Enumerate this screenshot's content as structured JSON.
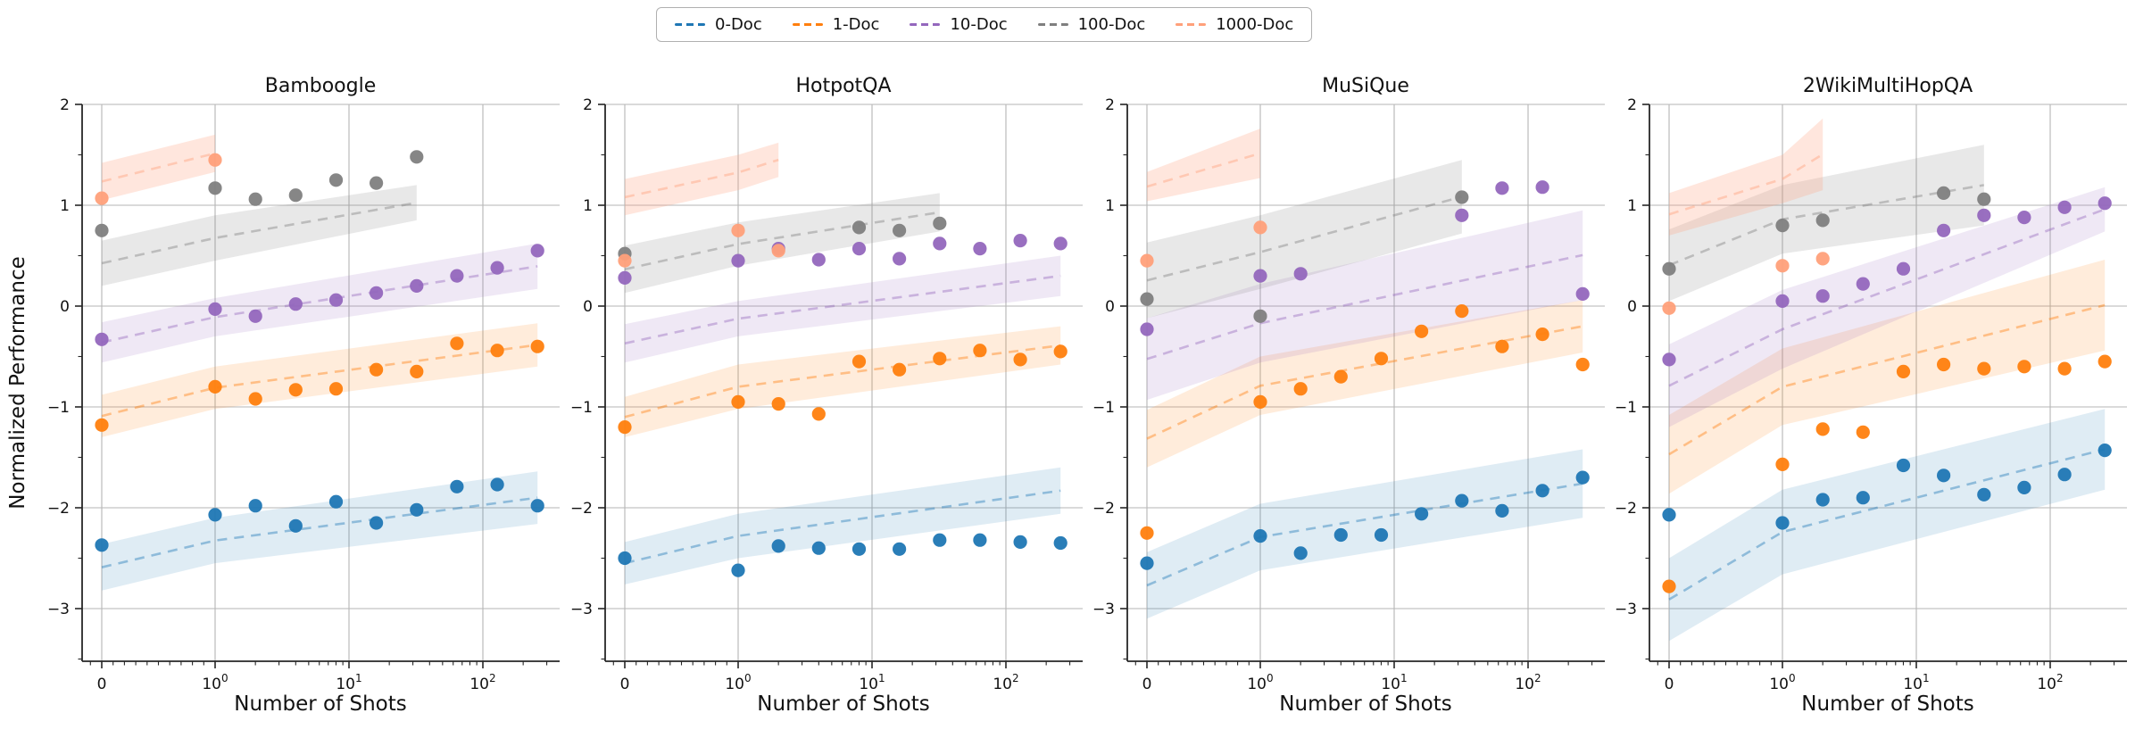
{
  "legend": {
    "items": [
      {
        "label": "0-Doc",
        "color": "#1f77b4"
      },
      {
        "label": "1-Doc",
        "color": "#ff7f0e"
      },
      {
        "label": "10-Doc",
        "color": "#9467bd"
      },
      {
        "label": "100-Doc",
        "color": "#7f7f7f"
      },
      {
        "label": "1000-Doc",
        "color": "#ffa07a"
      }
    ]
  },
  "axes": {
    "ylabel": "Normalized Performance",
    "xlabel": "Number of Shots",
    "yticks": [
      2,
      1,
      0,
      -1,
      -2,
      -3
    ],
    "ylim": [
      -3.52,
      2
    ],
    "xscale": "symlog",
    "xgrid": [
      0,
      1,
      10,
      100
    ],
    "xticks": [
      {
        "value": 0,
        "label": "0",
        "exp": ""
      },
      {
        "value": 1,
        "label": "10",
        "exp": "0"
      },
      {
        "value": 10,
        "label": "10",
        "exp": "1"
      },
      {
        "value": 100,
        "label": "10",
        "exp": "2"
      }
    ],
    "grid": true
  },
  "chart_data": [
    {
      "type": "scatter",
      "title": "Bamboogle",
      "xlabel": "Number of Shots",
      "series": [
        {
          "name": "0-Doc",
          "points": [
            [
              0,
              -2.37
            ],
            [
              1,
              -2.07
            ],
            [
              2,
              -1.98
            ],
            [
              4,
              -2.18
            ],
            [
              8,
              -1.94
            ],
            [
              16,
              -2.15
            ],
            [
              32,
              -2.02
            ],
            [
              64,
              -1.79
            ],
            [
              128,
              -1.77
            ],
            [
              256,
              -1.98
            ]
          ],
          "band": [
            [
              0,
              -2.82,
              -2.36
            ],
            [
              1,
              -2.55,
              -2.1
            ],
            [
              256,
              -2.16,
              -1.64
            ]
          ]
        },
        {
          "name": "1-Doc",
          "points": [
            [
              0,
              -1.18
            ],
            [
              1,
              -0.8
            ],
            [
              2,
              -0.92
            ],
            [
              4,
              -0.83
            ],
            [
              8,
              -0.82
            ],
            [
              16,
              -0.63
            ],
            [
              32,
              -0.65
            ],
            [
              64,
              -0.37
            ],
            [
              128,
              -0.44
            ],
            [
              256,
              -0.4
            ]
          ],
          "band": [
            [
              0,
              -1.3,
              -0.88
            ],
            [
              1,
              -1.02,
              -0.6
            ],
            [
              256,
              -0.6,
              -0.17
            ]
          ]
        },
        {
          "name": "10-Doc",
          "points": [
            [
              0,
              -0.33
            ],
            [
              1,
              -0.03
            ],
            [
              2,
              -0.1
            ],
            [
              4,
              0.02
            ],
            [
              8,
              0.06
            ],
            [
              16,
              0.13
            ],
            [
              32,
              0.2
            ],
            [
              64,
              0.3
            ],
            [
              128,
              0.38
            ],
            [
              256,
              0.55
            ]
          ],
          "band": [
            [
              0,
              -0.56,
              -0.16
            ],
            [
              1,
              -0.3,
              0.08
            ],
            [
              256,
              0.17,
              0.62
            ]
          ]
        },
        {
          "name": "100-Doc",
          "points": [
            [
              0,
              0.75
            ],
            [
              1,
              1.17
            ],
            [
              2,
              1.06
            ],
            [
              4,
              1.1
            ],
            [
              8,
              1.25
            ],
            [
              16,
              1.22
            ],
            [
              32,
              1.48
            ]
          ],
          "band": [
            [
              0,
              0.2,
              0.65
            ],
            [
              1,
              0.45,
              0.9
            ],
            [
              32,
              0.85,
              1.2
            ]
          ]
        },
        {
          "name": "1000-Doc",
          "points": [
            [
              0,
              1.07
            ],
            [
              1,
              1.45
            ]
          ],
          "band": [
            [
              0,
              1.05,
              1.42
            ],
            [
              1,
              1.33,
              1.7
            ]
          ]
        }
      ]
    },
    {
      "type": "scatter",
      "title": "HotpotQA",
      "xlabel": "Number of Shots",
      "series": [
        {
          "name": "0-Doc",
          "points": [
            [
              0,
              -2.5
            ],
            [
              1,
              -2.62
            ],
            [
              2,
              -2.38
            ],
            [
              4,
              -2.4
            ],
            [
              8,
              -2.41
            ],
            [
              16,
              -2.41
            ],
            [
              32,
              -2.32
            ],
            [
              64,
              -2.32
            ],
            [
              128,
              -2.34
            ],
            [
              256,
              -2.35
            ]
          ],
          "band": [
            [
              0,
              -2.76,
              -2.34
            ],
            [
              1,
              -2.5,
              -2.06
            ],
            [
              256,
              -2.06,
              -1.6
            ]
          ]
        },
        {
          "name": "1-Doc",
          "points": [
            [
              0,
              -1.2
            ],
            [
              1,
              -0.95
            ],
            [
              2,
              -0.97
            ],
            [
              4,
              -1.07
            ],
            [
              8,
              -0.55
            ],
            [
              16,
              -0.63
            ],
            [
              32,
              -0.52
            ],
            [
              64,
              -0.44
            ],
            [
              128,
              -0.53
            ],
            [
              256,
              -0.45
            ]
          ],
          "band": [
            [
              0,
              -1.3,
              -0.9
            ],
            [
              1,
              -1.02,
              -0.58
            ],
            [
              256,
              -0.58,
              -0.2
            ]
          ]
        },
        {
          "name": "10-Doc",
          "points": [
            [
              0,
              0.28
            ],
            [
              1,
              0.45
            ],
            [
              2,
              0.57
            ],
            [
              4,
              0.46
            ],
            [
              8,
              0.57
            ],
            [
              16,
              0.47
            ],
            [
              32,
              0.62
            ],
            [
              64,
              0.57
            ],
            [
              128,
              0.65
            ],
            [
              256,
              0.62
            ]
          ],
          "band": [
            [
              0,
              -0.56,
              -0.18
            ],
            [
              1,
              -0.3,
              0.05
            ],
            [
              256,
              0.1,
              0.5
            ]
          ]
        },
        {
          "name": "100-Doc",
          "points": [
            [
              0,
              0.52
            ],
            [
              8,
              0.78
            ],
            [
              16,
              0.75
            ],
            [
              32,
              0.82
            ]
          ],
          "band": [
            [
              0,
              0.13,
              0.6
            ],
            [
              1,
              0.4,
              0.83
            ],
            [
              32,
              0.74,
              1.12
            ]
          ]
        },
        {
          "name": "1000-Doc",
          "points": [
            [
              0,
              0.45
            ],
            [
              1,
              0.75
            ],
            [
              2,
              0.55
            ]
          ],
          "band": [
            [
              0,
              0.9,
              1.26
            ],
            [
              1,
              1.15,
              1.5
            ],
            [
              2,
              1.28,
              1.62
            ]
          ]
        }
      ]
    },
    {
      "type": "scatter",
      "title": "MuSiQue",
      "xlabel": "Number of Shots",
      "series": [
        {
          "name": "0-Doc",
          "points": [
            [
              0,
              -2.55
            ],
            [
              1,
              -2.28
            ],
            [
              2,
              -2.45
            ],
            [
              4,
              -2.27
            ],
            [
              8,
              -2.27
            ],
            [
              16,
              -2.06
            ],
            [
              32,
              -1.93
            ],
            [
              64,
              -2.03
            ],
            [
              128,
              -1.83
            ],
            [
              256,
              -1.7
            ]
          ],
          "band": [
            [
              0,
              -3.1,
              -2.44
            ],
            [
              1,
              -2.62,
              -1.96
            ],
            [
              256,
              -2.1,
              -1.42
            ]
          ]
        },
        {
          "name": "1-Doc",
          "points": [
            [
              0,
              -2.25
            ],
            [
              1,
              -0.95
            ],
            [
              2,
              -0.82
            ],
            [
              4,
              -0.7
            ],
            [
              8,
              -0.52
            ],
            [
              16,
              -0.25
            ],
            [
              32,
              -0.05
            ],
            [
              64,
              -0.4
            ],
            [
              128,
              -0.28
            ],
            [
              256,
              -0.58
            ]
          ],
          "band": [
            [
              0,
              -1.6,
              -1.03
            ],
            [
              1,
              -1.08,
              -0.5
            ],
            [
              256,
              -0.46,
              0.06
            ]
          ]
        },
        {
          "name": "10-Doc",
          "points": [
            [
              0,
              -0.23
            ],
            [
              1,
              0.3
            ],
            [
              2,
              0.32
            ],
            [
              32,
              0.9
            ],
            [
              64,
              1.17
            ],
            [
              128,
              1.18
            ],
            [
              256,
              0.12
            ]
          ],
          "band": [
            [
              0,
              -0.93,
              -0.12
            ],
            [
              1,
              -0.56,
              0.22
            ],
            [
              256,
              0.06,
              0.95
            ]
          ]
        },
        {
          "name": "100-Doc",
          "points": [
            [
              0,
              0.07
            ],
            [
              1,
              -0.1
            ],
            [
              32,
              1.08
            ]
          ],
          "band": [
            [
              0,
              -0.12,
              0.63
            ],
            [
              1,
              0.17,
              0.9
            ],
            [
              32,
              0.72,
              1.45
            ]
          ]
        },
        {
          "name": "1000-Doc",
          "points": [
            [
              0,
              0.45
            ],
            [
              1,
              0.78
            ]
          ],
          "band": [
            [
              0,
              1.04,
              1.33
            ],
            [
              1,
              1.27,
              1.76
            ]
          ]
        }
      ]
    },
    {
      "type": "scatter",
      "title": "2WikiMultiHopQA",
      "xlabel": "Number of Shots",
      "series": [
        {
          "name": "0-Doc",
          "points": [
            [
              0,
              -2.07
            ],
            [
              1,
              -2.15
            ],
            [
              2,
              -1.92
            ],
            [
              4,
              -1.9
            ],
            [
              8,
              -1.58
            ],
            [
              16,
              -1.68
            ],
            [
              32,
              -1.87
            ],
            [
              64,
              -1.8
            ],
            [
              128,
              -1.67
            ],
            [
              256,
              -1.43
            ]
          ],
          "band": [
            [
              0,
              -3.32,
              -2.5
            ],
            [
              1,
              -2.66,
              -1.82
            ],
            [
              256,
              -1.82,
              -1.02
            ]
          ]
        },
        {
          "name": "1-Doc",
          "points": [
            [
              0,
              -2.78
            ],
            [
              1,
              -1.57
            ],
            [
              2,
              -1.22
            ],
            [
              4,
              -1.25
            ],
            [
              8,
              -0.65
            ],
            [
              16,
              -0.58
            ],
            [
              32,
              -0.62
            ],
            [
              64,
              -0.6
            ],
            [
              128,
              -0.62
            ],
            [
              256,
              -0.55
            ]
          ],
          "band": [
            [
              0,
              -1.86,
              -1.08
            ],
            [
              1,
              -1.18,
              -0.42
            ],
            [
              256,
              -0.44,
              0.46
            ]
          ]
        },
        {
          "name": "10-Doc",
          "points": [
            [
              0,
              -0.53
            ],
            [
              1,
              0.05
            ],
            [
              2,
              0.1
            ],
            [
              4,
              0.22
            ],
            [
              8,
              0.37
            ],
            [
              16,
              0.75
            ],
            [
              32,
              0.9
            ],
            [
              64,
              0.88
            ],
            [
              128,
              0.98
            ],
            [
              256,
              1.02
            ]
          ],
          "band": [
            [
              0,
              -1.2,
              -0.38
            ],
            [
              1,
              -0.62,
              0.16
            ],
            [
              256,
              0.74,
              1.18
            ]
          ]
        },
        {
          "name": "100-Doc",
          "points": [
            [
              0,
              0.37
            ],
            [
              1,
              0.8
            ],
            [
              2,
              0.85
            ],
            [
              16,
              1.12
            ],
            [
              32,
              1.06
            ]
          ],
          "band": [
            [
              0,
              0.05,
              0.76
            ],
            [
              1,
              0.52,
              1.2
            ],
            [
              32,
              0.8,
              1.6
            ]
          ]
        },
        {
          "name": "1000-Doc",
          "points": [
            [
              0,
              -0.02
            ],
            [
              1,
              0.4
            ],
            [
              2,
              0.47
            ]
          ],
          "band": [
            [
              0,
              0.7,
              1.12
            ],
            [
              1,
              1.02,
              1.5
            ],
            [
              2,
              1.15,
              1.86
            ]
          ]
        }
      ]
    }
  ]
}
